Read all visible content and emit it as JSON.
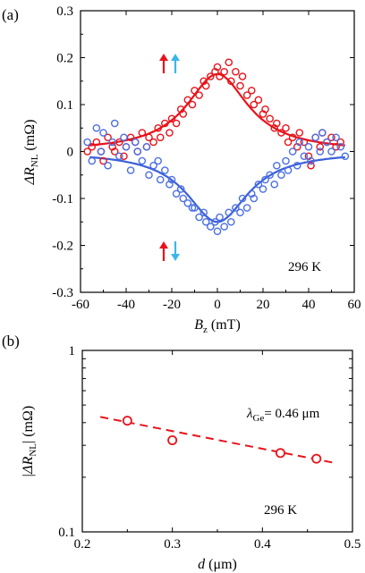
{
  "chart_data": [
    {
      "panel": "(a)",
      "type": "scatter",
      "xlabel": "B_z (mT)",
      "xlabel_main": "B",
      "xlabel_sub": "z",
      "xlabel_unit": " (mT)",
      "ylabel_main": "ΔR",
      "ylabel_sub": "NL",
      "ylabel_unit": " (mΩ)",
      "xlim": [
        -60,
        60
      ],
      "ylim": [
        -0.3,
        0.3
      ],
      "xticks": [
        -60,
        -40,
        -20,
        0,
        20,
        40,
        60
      ],
      "xtick_labels": [
        "-60",
        "-40",
        "-20",
        "0",
        "20",
        "40",
        "60"
      ],
      "yticks": [
        -0.3,
        -0.2,
        -0.1,
        0,
        0.1,
        0.2,
        0.3
      ],
      "ytick_labels": [
        "-0.3",
        "-0.2",
        "-0.1",
        "0",
        "0.1",
        "0.2",
        "0.3"
      ],
      "annotation": "296 K",
      "series": [
        {
          "color": "#e8131a",
          "marker": "open-circle",
          "x": [
            -57,
            -55,
            -53,
            -51,
            -50,
            -48,
            -46,
            -45,
            -43,
            -41,
            -40,
            -38,
            -36,
            -35,
            -33,
            -31,
            -30,
            -28,
            -26,
            -25,
            -23,
            -21,
            -20,
            -18,
            -16,
            -15,
            -13,
            -11,
            -10,
            -8,
            -6,
            -5,
            -3,
            -1,
            0,
            1,
            3,
            5,
            6,
            8,
            10,
            11,
            13,
            15,
            16,
            18,
            20,
            21,
            23,
            25,
            26,
            28,
            30,
            31,
            33,
            35,
            36,
            38,
            40,
            41,
            43,
            45,
            46,
            48,
            50,
            52,
            54
          ],
          "y": [
            0.0,
            0.01,
            0.02,
            0.0,
            -0.02,
            0.03,
            0.01,
            0.0,
            0.02,
            -0.01,
            0.01,
            0.03,
            0.02,
            0.0,
            0.04,
            0.01,
            0.03,
            0.02,
            0.05,
            0.03,
            0.06,
            0.04,
            0.07,
            0.06,
            0.09,
            0.08,
            0.11,
            0.1,
            0.13,
            0.12,
            0.15,
            0.14,
            0.16,
            0.17,
            0.18,
            0.16,
            0.17,
            0.19,
            0.15,
            0.17,
            0.14,
            0.16,
            0.12,
            0.13,
            0.1,
            0.11,
            0.08,
            0.09,
            0.07,
            0.05,
            0.06,
            0.04,
            0.05,
            0.02,
            0.03,
            0.01,
            0.04,
            0.02,
            -0.01,
            -0.03,
            0.03,
            0.01,
            0.04,
            0.02,
            0.03,
            0.01,
            0.02
          ]
        },
        {
          "color": "#4a6fe3",
          "marker": "open-circle",
          "x": [
            -57,
            -55,
            -53,
            -51,
            -50,
            -48,
            -46,
            -45,
            -43,
            -41,
            -40,
            -38,
            -36,
            -35,
            -33,
            -31,
            -30,
            -28,
            -26,
            -25,
            -23,
            -21,
            -20,
            -18,
            -16,
            -15,
            -13,
            -11,
            -10,
            -8,
            -6,
            -5,
            -3,
            -1,
            0,
            1,
            3,
            5,
            6,
            8,
            10,
            11,
            13,
            15,
            16,
            18,
            20,
            21,
            23,
            25,
            26,
            28,
            30,
            31,
            33,
            35,
            36,
            38,
            40,
            41,
            43,
            45,
            46,
            48,
            50,
            52,
            54,
            56
          ],
          "y": [
            0.02,
            -0.02,
            0.05,
            0.0,
            0.04,
            -0.03,
            0.02,
            0.06,
            -0.01,
            0.03,
            0.01,
            -0.04,
            0.02,
            0.0,
            -0.02,
            0.01,
            -0.05,
            -0.03,
            -0.02,
            -0.06,
            -0.04,
            -0.07,
            -0.06,
            -0.09,
            -0.08,
            -0.1,
            -0.11,
            -0.12,
            -0.12,
            -0.14,
            -0.13,
            -0.15,
            -0.16,
            -0.15,
            -0.17,
            -0.14,
            -0.16,
            -0.13,
            -0.15,
            -0.12,
            -0.13,
            -0.1,
            -0.12,
            -0.09,
            -0.1,
            -0.07,
            -0.08,
            -0.06,
            -0.05,
            -0.07,
            -0.03,
            -0.05,
            -0.02,
            -0.04,
            0.0,
            -0.03,
            0.02,
            -0.01,
            0.01,
            -0.02,
            0.03,
            0.0,
            0.04,
            0.02,
            0.0,
            0.03,
            0.01,
            -0.01
          ]
        }
      ],
      "fit_lines": [
        {
          "color": "#e8131a",
          "amplitude": 0.165,
          "width": 16.5
        },
        {
          "color": "#3b5fd9",
          "amplitude": -0.15,
          "width": 16.5
        }
      ],
      "state_arrows": [
        {
          "pair": "upper",
          "left_color": "#e8131a",
          "left_direction": "up",
          "right_color": "#3cb6ea",
          "right_direction": "up"
        },
        {
          "pair": "lower",
          "left_color": "#e8131a",
          "left_direction": "up",
          "right_color": "#3cb6ea",
          "right_direction": "down"
        }
      ]
    },
    {
      "panel": "(b)",
      "type": "scatter",
      "yscale": "log",
      "xlabel_main": "d",
      "xlabel_unit": " (μm)",
      "ylabel_main": "|ΔR",
      "ylabel_sub": "NL",
      "ylabel_unit": "| (mΩ)",
      "xlim": [
        0.2,
        0.5
      ],
      "ylim": [
        0.1,
        1
      ],
      "xticks": [
        0.2,
        0.3,
        0.4,
        0.5
      ],
      "xtick_labels": [
        "0.2",
        "0.3",
        "0.4",
        "0.5"
      ],
      "yticks": [
        0.1,
        1
      ],
      "ytick_labels": [
        "0.1",
        "1"
      ],
      "annotation": "296 K",
      "fit_label_main": "λ",
      "fit_label_sub": "Ge",
      "fit_label_value": "= 0.46 μm",
      "series": [
        {
          "color": "#e8131a",
          "marker": "open-circle",
          "x": [
            0.25,
            0.3,
            0.42,
            0.46
          ],
          "y": [
            0.41,
            0.32,
            0.272,
            0.253
          ]
        }
      ],
      "fit": {
        "color": "#e8131a",
        "style": "dashed",
        "x": [
          0.22,
          0.48
        ],
        "y": [
          0.43,
          0.24
        ]
      }
    }
  ]
}
